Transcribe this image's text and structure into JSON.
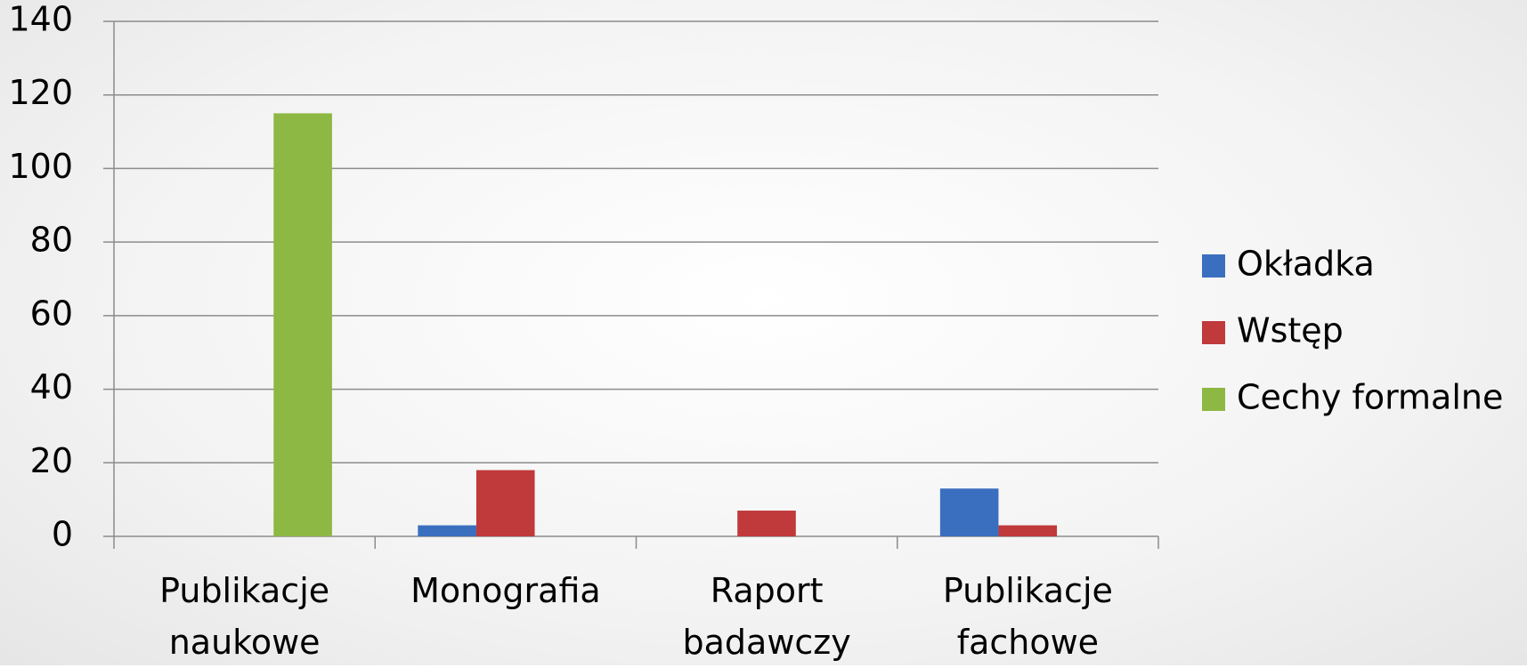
{
  "chart_data": {
    "type": "bar",
    "categories": [
      "Publikacje naukowe",
      "Monografia",
      "Raport badawczy",
      "Publikacje fachowe"
    ],
    "series": [
      {
        "name": "Okładka",
        "color": "#3a6fbf",
        "values": [
          0,
          3,
          0,
          13
        ]
      },
      {
        "name": "Wstęp",
        "color": "#c0393b",
        "values": [
          0,
          18,
          7,
          3
        ]
      },
      {
        "name": "Cechy formalne",
        "color": "#8db843",
        "values": [
          115,
          0,
          0,
          0
        ]
      }
    ],
    "ylim": [
      0,
      140
    ],
    "yticks": [
      0,
      20,
      40,
      60,
      80,
      100,
      120,
      140
    ],
    "grid": true,
    "legend": "right"
  }
}
